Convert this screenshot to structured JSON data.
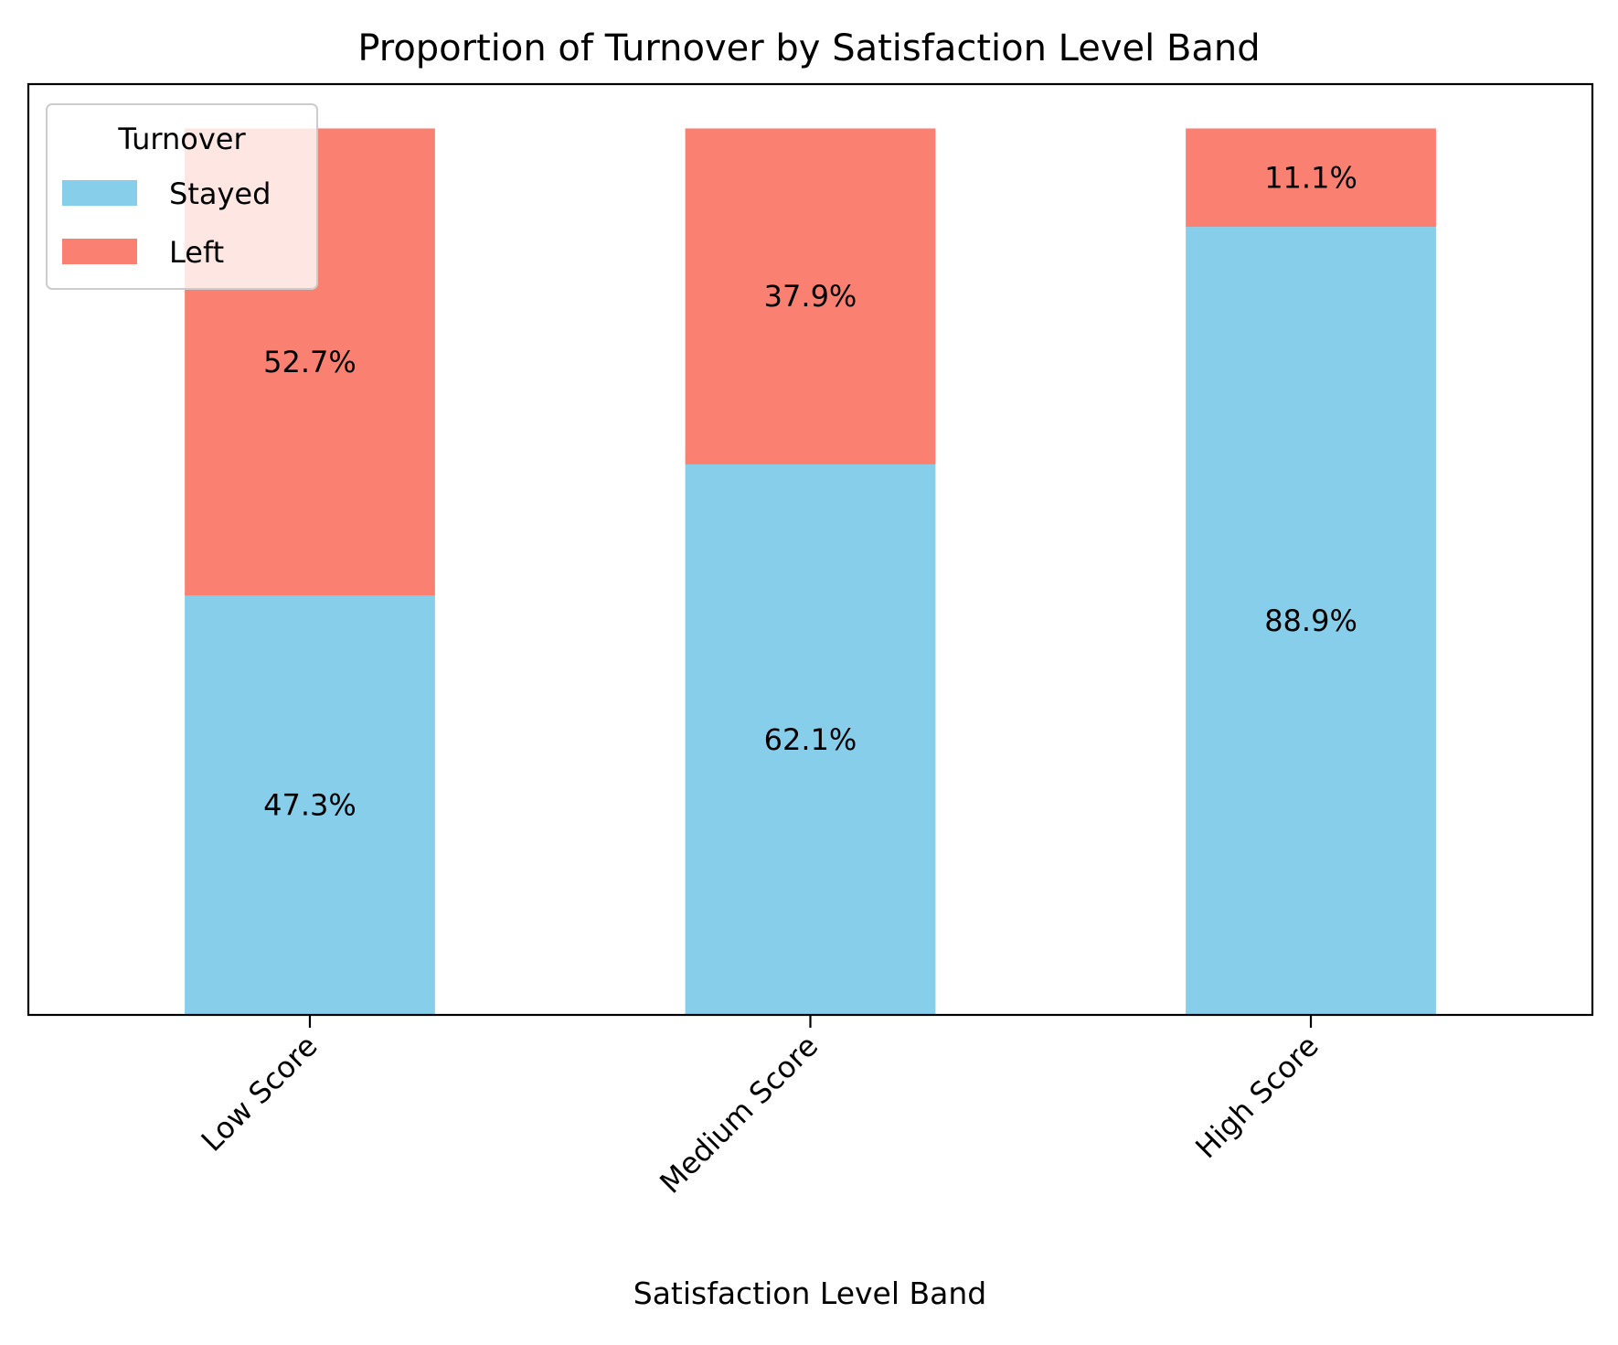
{
  "chart_data": {
    "type": "bar",
    "stacked": true,
    "title": "Proportion of Turnover by Satisfaction Level Band",
    "xlabel": "Satisfaction Level Band",
    "ylabel": "",
    "categories": [
      "Low Score",
      "Medium Score",
      "High Score"
    ],
    "series": [
      {
        "name": "Stayed",
        "values": [
          47.3,
          62.1,
          88.9
        ],
        "labels": [
          "47.3%",
          "62.1%",
          "88.9%"
        ],
        "color": "#87CEEB"
      },
      {
        "name": "Left",
        "values": [
          52.7,
          37.9,
          11.1
        ],
        "labels": [
          "52.7%",
          "37.9%",
          "11.1%"
        ],
        "color": "#FA8072"
      }
    ],
    "ylim": [
      0,
      105
    ],
    "y_axis_visible": false,
    "x_tick_rotation_deg": 45,
    "legend": {
      "title": "Turnover",
      "placement": "top-left"
    },
    "grid": false
  }
}
